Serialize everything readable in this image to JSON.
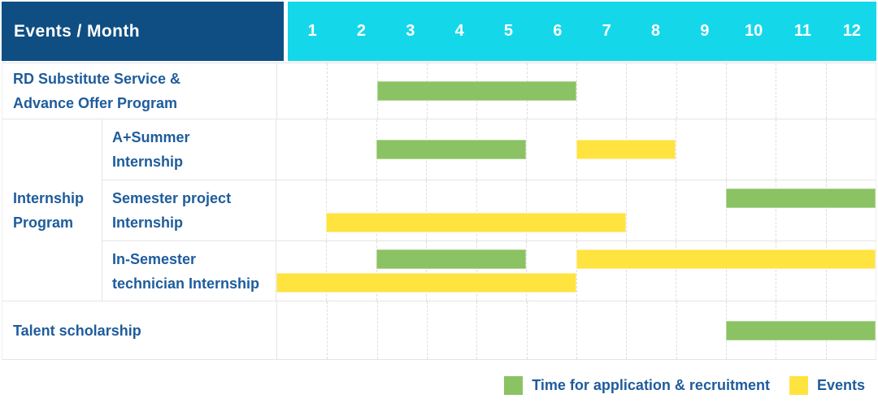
{
  "header": {
    "events_month_label": "Events / Month",
    "months": [
      "1",
      "2",
      "3",
      "4",
      "5",
      "6",
      "7",
      "8",
      "9",
      "10",
      "11",
      "12"
    ]
  },
  "rows": {
    "rd": {
      "label": "RD Substitute Service &\nAdvance Offer Program"
    },
    "internship_group": {
      "label": "Internship\nProgram"
    },
    "a_summer": {
      "label": "A+Summer\nInternship"
    },
    "semester_project": {
      "label": "Semester project\nInternship"
    },
    "in_semester": {
      "label": "In-Semester\ntechnician Internship"
    },
    "talent": {
      "label": "Talent scholarship"
    }
  },
  "legend": {
    "application_label": "Time for application & recruitment",
    "events_label": "Events"
  },
  "colors": {
    "navy": "#0f4e82",
    "cyan": "#15d7ea",
    "label_blue": "#1e5c9c",
    "green": "#8ac264",
    "green_edge": "#b2d694",
    "yellow": "#ffe33f",
    "yellow_edge": "#ffee9b",
    "grid_line": "#e4e4e4",
    "month_line": "#dedede"
  },
  "chart_data": {
    "type": "bar",
    "subtype": "gantt",
    "title": "Events / Month",
    "xlabel": "Month",
    "x_ticks": [
      1,
      2,
      3,
      4,
      5,
      6,
      7,
      8,
      9,
      10,
      11,
      12
    ],
    "x_range": [
      1,
      12
    ],
    "grid": "dashed vertical month separators",
    "legend_position": "bottom-right",
    "legend": [
      {
        "kind": "application",
        "name": "Time for application & recruitment",
        "color": "#8ac264"
      },
      {
        "kind": "event",
        "name": "Events",
        "color": "#ffe33f"
      }
    ],
    "rows": [
      {
        "row_index": 0,
        "group": "RD Substitute Service & Advance Offer Program",
        "task": "",
        "bars": [
          {
            "kind": "application",
            "start_month": 3,
            "end_month": 6,
            "lane": "single"
          }
        ]
      },
      {
        "row_index": 1,
        "group": "Internship Program",
        "task": "A+Summer Internship",
        "bars": [
          {
            "kind": "application",
            "start_month": 3,
            "end_month": 5,
            "lane": "single"
          },
          {
            "kind": "event",
            "start_month": 7,
            "end_month": 8,
            "lane": "single"
          }
        ]
      },
      {
        "row_index": 2,
        "group": "Internship Program",
        "task": "Semester project Internship",
        "bars": [
          {
            "kind": "application",
            "start_month": 10,
            "end_month": 12,
            "lane": "top"
          },
          {
            "kind": "event",
            "start_month": 2,
            "end_month": 7,
            "lane": "bottom"
          }
        ]
      },
      {
        "row_index": 3,
        "group": "Internship Program",
        "task": "In-Semester technician Internship",
        "bars": [
          {
            "kind": "application",
            "start_month": 3,
            "end_month": 5,
            "lane": "top"
          },
          {
            "kind": "event",
            "start_month": 7,
            "end_month": 12,
            "lane": "top"
          },
          {
            "kind": "event",
            "start_month": 1,
            "end_month": 6,
            "lane": "bottom"
          }
        ]
      },
      {
        "row_index": 4,
        "group": "Talent scholarship",
        "task": "",
        "bars": [
          {
            "kind": "application",
            "start_month": 10,
            "end_month": 12,
            "lane": "single"
          }
        ]
      }
    ]
  }
}
